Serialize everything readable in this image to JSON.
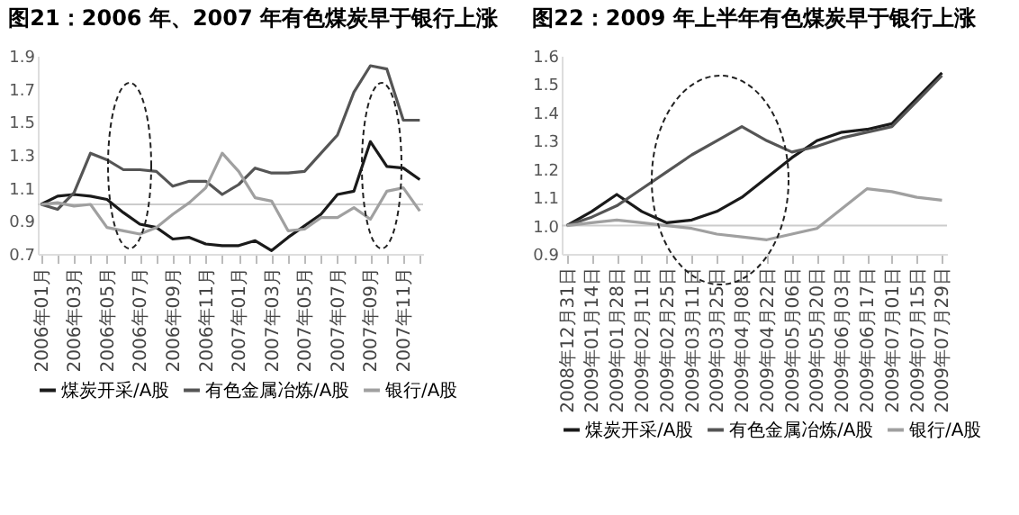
{
  "chart_data": [
    {
      "type": "line",
      "title": "图21：2006 年、2007 年有色煤炭早于银行上涨",
      "categories": [
        "2006年01月",
        null,
        "2006年03月",
        null,
        "2006年05月",
        null,
        "2006年07月",
        null,
        "2006年09月",
        null,
        "2006年11月",
        null,
        "2007年01月",
        null,
        "2007年03月",
        null,
        "2007年05月",
        null,
        "2007年07月",
        null,
        "2007年09月",
        null,
        "2007年11月",
        null
      ],
      "series": [
        {
          "name": "煤炭开采/A股",
          "color": "#1a1a1a",
          "values": [
            1.0,
            1.05,
            1.06,
            1.05,
            1.03,
            0.95,
            0.88,
            0.86,
            0.79,
            0.8,
            0.76,
            0.75,
            0.75,
            0.78,
            0.72,
            0.8,
            0.87,
            0.94,
            1.06,
            1.08,
            1.38,
            1.23,
            1.22,
            1.15
          ]
        },
        {
          "name": "有色金属冶炼/A股",
          "color": "#555555",
          "values": [
            1.0,
            0.97,
            1.07,
            1.31,
            1.27,
            1.21,
            1.21,
            1.2,
            1.11,
            1.14,
            1.14,
            1.06,
            1.12,
            1.22,
            1.19,
            1.19,
            1.2,
            1.31,
            1.42,
            1.68,
            1.84,
            1.82,
            1.51,
            1.51
          ]
        },
        {
          "name": "银行/A股",
          "color": "#a0a0a0",
          "values": [
            1.0,
            1.01,
            0.99,
            1.0,
            0.86,
            0.84,
            0.82,
            0.86,
            0.94,
            1.01,
            1.1,
            1.31,
            1.2,
            1.04,
            1.02,
            0.84,
            0.85,
            0.92,
            0.92,
            0.98,
            0.91,
            1.08,
            1.1,
            0.96
          ]
        }
      ],
      "ylim": [
        0.7,
        1.9
      ],
      "yticks": [
        0.7,
        0.9,
        1.1,
        1.3,
        1.5,
        1.7,
        1.9
      ],
      "ref_lines": [
        {
          "axis": "y",
          "value": 1.0,
          "color": "#cccccc"
        }
      ],
      "legend": "bottom",
      "grid": false
    },
    {
      "type": "line",
      "title": "图22：2009 年上半年有色煤炭早于银行上涨",
      "categories": [
        "2008年12月31日",
        "2009年01月14日",
        "2009年01月28日",
        "2009年02月11日",
        "2009年02月25日",
        "2009年03月11日",
        "2009年03月25日",
        "2009年04月08日",
        "2009年04月22日",
        "2009年05月06日",
        "2009年05月20日",
        "2009年06月03日",
        "2009年06月17日",
        "2009年07月01日",
        "2009年07月15日",
        "2009年07月29日"
      ],
      "series": [
        {
          "name": "煤炭开采/A股",
          "color": "#1a1a1a",
          "values": [
            1.0,
            1.05,
            1.11,
            1.05,
            1.01,
            1.02,
            1.05,
            1.1,
            1.17,
            1.24,
            1.3,
            1.33,
            1.34,
            1.36,
            1.45,
            1.54
          ]
        },
        {
          "name": "有色金属冶炼/A股",
          "color": "#555555",
          "values": [
            1.0,
            1.03,
            1.07,
            1.13,
            1.19,
            1.25,
            1.3,
            1.35,
            1.3,
            1.26,
            1.28,
            1.31,
            1.33,
            1.35,
            1.44,
            1.53
          ]
        },
        {
          "name": "银行/A股",
          "color": "#a0a0a0",
          "values": [
            1.0,
            1.01,
            1.02,
            1.01,
            1.0,
            0.99,
            0.97,
            0.96,
            0.95,
            0.97,
            0.99,
            1.06,
            1.13,
            1.12,
            1.1,
            1.09
          ]
        }
      ],
      "ylim": [
        0.9,
        1.6
      ],
      "yticks": [
        0.9,
        {
          "value": 1.0,
          "label": "1.0"
        },
        1.1,
        1.2,
        1.3,
        1.4,
        1.5,
        1.6
      ],
      "ref_lines": [
        {
          "axis": "y",
          "value": 1.0,
          "color": "#cccccc"
        }
      ],
      "legend": "bottom",
      "grid": false
    }
  ]
}
